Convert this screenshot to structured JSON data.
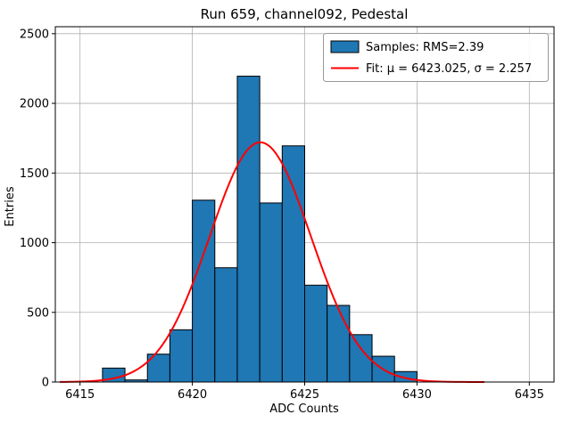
{
  "chart_data": {
    "type": "bar",
    "subtype": "histogram-with-gaussian-fit",
    "title": "Run 659, channel092, Pedestal",
    "xlabel": "ADC Counts",
    "ylabel": "Entries",
    "xlim": [
      6413.9,
      6436.1
    ],
    "ylim": [
      0,
      2550
    ],
    "xticks": [
      6415,
      6420,
      6425,
      6430,
      6435
    ],
    "yticks": [
      0,
      500,
      1000,
      1500,
      2000,
      2500
    ],
    "grid": true,
    "grid_color": "#b0b0b0",
    "bar_color": "#1f77b4",
    "bar_edge_color": "#000000",
    "bin_start": 6416,
    "bin_width": 1,
    "counts": [
      100,
      15,
      200,
      375,
      1305,
      820,
      2195,
      1285,
      1695,
      695,
      550,
      340,
      185,
      75
    ],
    "fit": {
      "mu": 6423.025,
      "sigma": 2.257,
      "amplitude": 1720,
      "color": "#ff0000",
      "x_start": 6414.1,
      "x_end": 6433.0
    },
    "legend": {
      "position": "upper right",
      "samples_label": "Samples: RMS=2.39",
      "fit_label": "Fit: μ = 6423.025, σ = 2.257"
    }
  }
}
